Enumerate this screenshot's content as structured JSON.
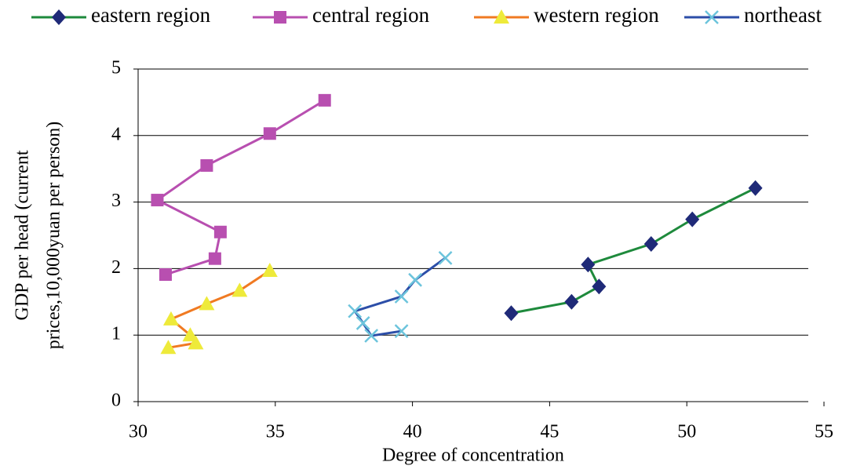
{
  "chart_data": {
    "type": "line",
    "xlabel": "Degree of concentration",
    "ylabel": [
      "GDP per head (current",
      "prices,10,000yuan per person)"
    ],
    "xlim": [
      30,
      55
    ],
    "xticks": [
      30,
      35,
      40,
      45,
      50,
      55
    ],
    "ylim": [
      0,
      5
    ],
    "yticks": [
      0,
      1,
      2,
      3,
      4,
      5
    ],
    "grid": true,
    "legend": "top",
    "series": [
      {
        "name": "eastern region",
        "color": "#1e8a3c",
        "marker_color": "#1f2a78",
        "marker": "diamond",
        "x": [
          43.6,
          45.8,
          46.8,
          46.4,
          48.7,
          50.2,
          52.5
        ],
        "values": [
          1.33,
          1.5,
          1.73,
          2.06,
          2.37,
          2.74,
          3.21
        ]
      },
      {
        "name": "central region",
        "color": "#b84fb0",
        "marker_color": "#b84fb0",
        "marker": "square",
        "x": [
          31.0,
          32.8,
          33.0,
          30.7,
          32.5,
          34.8,
          36.8
        ],
        "values": [
          1.91,
          2.15,
          2.55,
          3.03,
          3.55,
          4.03,
          4.53
        ]
      },
      {
        "name": "western region",
        "color": "#f07a22",
        "marker_color": "#eeea3a",
        "marker": "triangle",
        "x": [
          31.1,
          32.1,
          31.9,
          31.2,
          32.5,
          33.7,
          34.8
        ],
        "values": [
          0.81,
          0.88,
          1.0,
          1.24,
          1.47,
          1.67,
          1.97
        ]
      },
      {
        "name": "northeast",
        "color": "#2c4ea8",
        "marker_color": "#6cc4dc",
        "marker": "cross",
        "x": [
          39.6,
          38.5,
          38.2,
          37.9,
          39.6,
          40.1,
          41.2
        ],
        "values": [
          1.06,
          0.99,
          1.18,
          1.36,
          1.58,
          1.83,
          2.16
        ]
      }
    ]
  }
}
